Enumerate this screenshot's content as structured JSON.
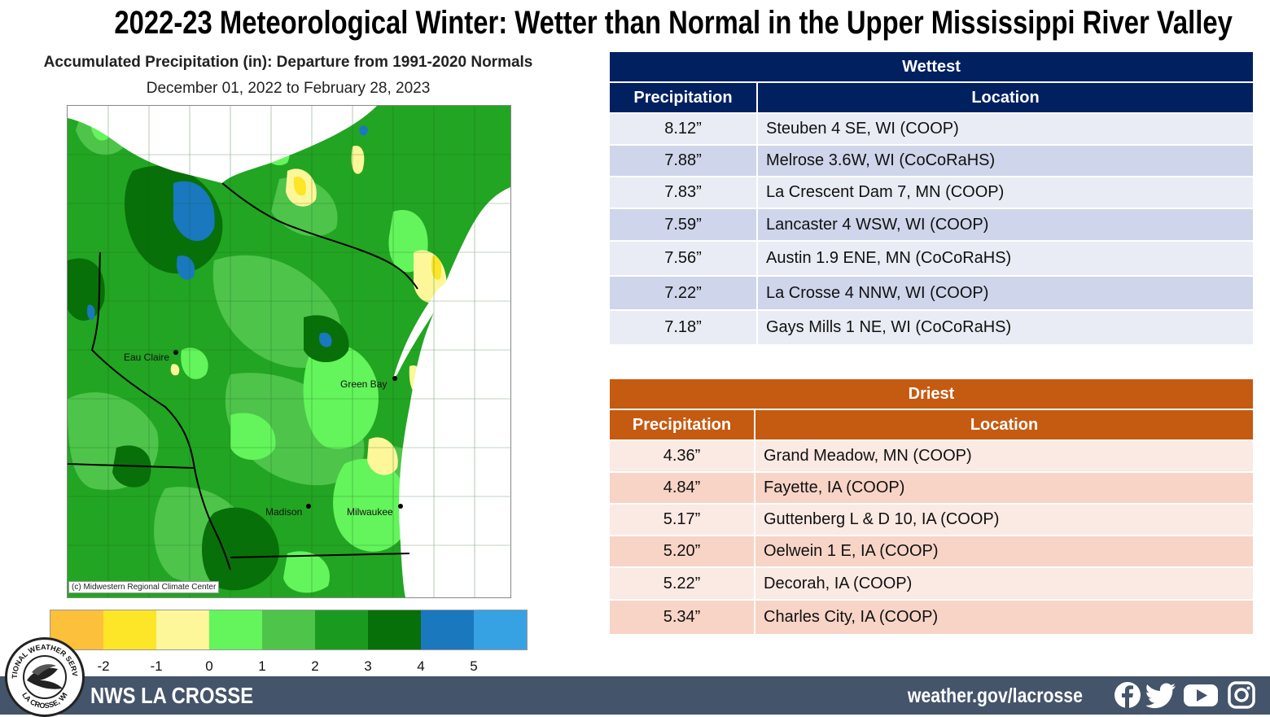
{
  "title": "2022-23 Meteorological Winter: Wetter than Normal in the Upper Mississippi River Valley",
  "map": {
    "title": "Accumulated Precipitation (in): Departure from 1991-2020 Normals",
    "dates": "December 01, 2022 to February 28, 2023",
    "copyright": "(c) Midwestern Regional Climate Center",
    "cities": [
      "Eau Claire",
      "Green Bay",
      "Madison",
      "Milwaukee"
    ],
    "colors": {
      "lake": "#ffffff",
      "base": "#22a522",
      "legend": [
        "#fdc03b",
        "#fde527",
        "#fdf79a",
        "#63f55b",
        "#4ec44b",
        "#1a9b1f",
        "#077008",
        "#1a78bf",
        "#37a2e3"
      ]
    }
  },
  "legend": {
    "ticks": [
      "-2",
      "-1",
      "0",
      "1",
      "2",
      "3",
      "4",
      "5"
    ]
  },
  "wettest": {
    "title": "Wettest",
    "col_precip": "Precipitation",
    "col_location": "Location",
    "header_color": "#002060",
    "row_colors": [
      "#e9ecf4",
      "#cfd5ea"
    ],
    "rows": [
      {
        "precip": "8.12”",
        "location": "Steuben 4 SE, WI (COOP)"
      },
      {
        "precip": "7.88”",
        "location": "Melrose 3.6W, WI (CoCoRaHS)"
      },
      {
        "precip": "7.83”",
        "location": "La Crescent Dam 7, MN (COOP)"
      },
      {
        "precip": "7.59”",
        "location": "Lancaster 4 WSW, WI (COOP)"
      },
      {
        "precip": "7.56”",
        "location": "Austin 1.9 ENE, MN (CoCoRaHS)"
      },
      {
        "precip": "7.22”",
        "location": "La Crosse 4 NNW, WI (COOP)"
      },
      {
        "precip": "7.18”",
        "location": "Gays Mills 1 NE, WI (CoCoRaHS)"
      }
    ]
  },
  "driest": {
    "title": "Driest",
    "col_precip": "Precipitation",
    "col_location": "Location",
    "header_color": "#c55a11",
    "row_colors": [
      "#fbe9e3",
      "#f7d4c6"
    ],
    "rows": [
      {
        "precip": "4.36”",
        "location": "Grand Meadow, MN (COOP)"
      },
      {
        "precip": "4.84”",
        "location": "Fayette, IA (COOP)"
      },
      {
        "precip": "5.17”",
        "location": "Guttenberg L & D 10, IA (COOP)"
      },
      {
        "precip": "5.20”",
        "location": "Oelwein 1 E, IA (COOP)"
      },
      {
        "precip": "5.22”",
        "location": "Decorah, IA (COOP)"
      },
      {
        "precip": "5.34”",
        "location": "Charles City, IA (COOP)"
      }
    ]
  },
  "footer": {
    "office": "NWS LA CROSSE",
    "url": "weather.gov/lacrosse",
    "icons": [
      "facebook-icon",
      "twitter-icon",
      "youtube-icon",
      "instagram-icon"
    ],
    "badge_lettering": "NATIONAL WEATHER SERVICE LA CROSSE, WI"
  }
}
